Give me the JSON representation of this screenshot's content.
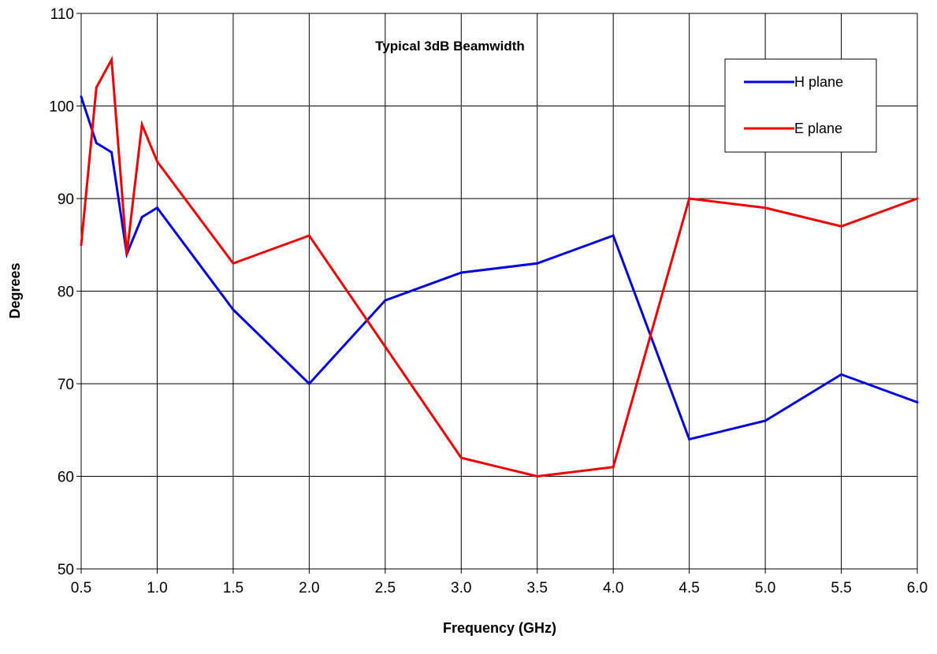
{
  "chart_data": {
    "type": "line",
    "title": "Typical 3dB Beamwidth",
    "xlabel": "Frequency (GHz)",
    "ylabel": "Degrees",
    "xlim": [
      0.5,
      6.0
    ],
    "ylim": [
      50,
      110
    ],
    "x_ticks": [
      0.5,
      1.0,
      1.5,
      2.0,
      2.5,
      3.0,
      3.5,
      4.0,
      4.5,
      5.0,
      5.5,
      6.0
    ],
    "x_tick_labels": [
      "0.5",
      "1.0",
      "1.5",
      "2.0",
      "2.5",
      "3.0",
      "3.5",
      "4.0",
      "4.5",
      "5.0",
      "5.5",
      "6.0"
    ],
    "y_ticks": [
      50,
      60,
      70,
      80,
      90,
      100,
      110
    ],
    "y_tick_labels": [
      "50",
      "60",
      "70",
      "80",
      "90",
      "100",
      "110"
    ],
    "grid": true,
    "legend_position": "top-right",
    "series": [
      {
        "name": "H plane",
        "color": "#0000dd",
        "x": [
          0.5,
          0.6,
          0.7,
          0.8,
          0.9,
          1.0,
          1.5,
          2.0,
          2.5,
          3.0,
          3.5,
          4.0,
          4.5,
          5.0,
          5.5,
          6.0
        ],
        "values": [
          101,
          96,
          95,
          84,
          88,
          89,
          78,
          70,
          79,
          82,
          83,
          86,
          64,
          66,
          71,
          68
        ]
      },
      {
        "name": "E plane",
        "color": "#ee0000",
        "x": [
          0.5,
          0.6,
          0.7,
          0.8,
          0.9,
          1.0,
          1.5,
          2.0,
          2.5,
          3.0,
          3.5,
          4.0,
          4.5,
          5.0,
          5.5,
          6.0
        ],
        "values": [
          85,
          102,
          105,
          84,
          98,
          94,
          83,
          86,
          74,
          62,
          60,
          61,
          90,
          89,
          87,
          90
        ]
      }
    ]
  }
}
